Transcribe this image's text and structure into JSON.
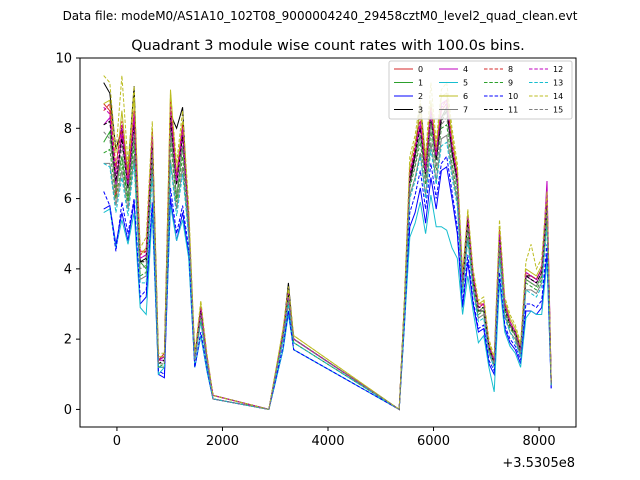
{
  "suptitle": "Data file: modeM0/AS1A10_102T08_9000004240_29458cztM0_level2_quad_clean.evt",
  "chart_data": {
    "type": "line",
    "title": "Quadrant 3 module wise count rates with 100.0s bins.",
    "xlabel": "",
    "ylabel": "",
    "x_offset_label": "+3.5305e8",
    "xlim": [
      -700,
      8700
    ],
    "ylim": [
      -0.5,
      10
    ],
    "xticks": [
      0,
      2000,
      4000,
      6000,
      8000
    ],
    "xtick_labels": [
      "0",
      "2000",
      "4000",
      "6000",
      "8000"
    ],
    "yticks": [
      0,
      2,
      4,
      6,
      8,
      10
    ],
    "ytick_labels": [
      "0",
      "2",
      "4",
      "6",
      "8",
      "10"
    ],
    "legend_position": "top-right",
    "series": [
      {
        "name": "0",
        "color": "#d62728",
        "dash": "solid",
        "seg1": [
          8.7,
          8.5,
          6.0,
          8.0,
          6.5,
          8.4,
          4.5,
          4.5,
          7.8,
          1.4,
          1.6,
          8.5,
          6.5,
          8.0,
          5.5,
          1.5,
          2.8,
          1.5,
          0.4,
          0
        ],
        "seg2": [
          2.2,
          3.3,
          2.0
        ],
        "seg3": [
          3.0,
          6.7,
          7.4,
          8.0,
          6.8,
          8.5,
          7.2,
          8.5,
          8.7,
          7.5,
          6.6,
          3.7,
          5.5,
          3.8,
          3.0,
          3.0,
          1.8,
          1.4,
          5.0,
          3.0,
          2.5,
          2.2,
          1.7,
          3.8,
          3.8,
          3.7,
          4.0,
          5.8,
          0.8
        ]
      },
      {
        "name": "1",
        "color": "#2ca02c",
        "dash": "solid",
        "seg1": [
          7.6,
          7.9,
          6.3,
          7.2,
          6.0,
          7.8,
          4.2,
          4.0,
          7.3,
          1.2,
          1.2,
          8.0,
          6.0,
          7.5,
          5.4,
          1.5,
          2.7,
          1.4,
          0.4,
          0
        ],
        "seg2": [
          2.1,
          3.2,
          2.0
        ],
        "seg3": [
          2.9,
          6.6,
          7.2,
          7.8,
          6.6,
          8.2,
          7.1,
          8.3,
          8.5,
          7.3,
          6.4,
          3.6,
          5.3,
          3.7,
          2.8,
          2.9,
          1.7,
          1.3,
          4.8,
          2.9,
          2.4,
          2.1,
          1.6,
          3.7,
          3.6,
          3.5,
          3.8,
          5.6,
          0.8
        ]
      },
      {
        "name": "2",
        "color": "#0000ff",
        "dash": "solid",
        "seg1": [
          5.7,
          5.8,
          4.7,
          5.6,
          4.8,
          5.9,
          3.0,
          3.2,
          5.8,
          1.0,
          0.9,
          6.0,
          4.8,
          5.6,
          4.4,
          1.2,
          2.1,
          1.1,
          0.3,
          0
        ],
        "seg2": [
          1.7,
          2.8,
          1.7
        ],
        "seg3": [
          2.5,
          5.2,
          5.6,
          6.3,
          5.3,
          6.6,
          5.7,
          6.8,
          6.9,
          6.0,
          5.0,
          2.9,
          4.2,
          3.0,
          2.2,
          2.3,
          1.3,
          1.0,
          3.7,
          2.3,
          1.9,
          1.7,
          1.3,
          2.8,
          2.8,
          2.7,
          2.9,
          4.4,
          0.6
        ]
      },
      {
        "name": "3",
        "color": "#000000",
        "dash": "solid",
        "seg1": [
          9.3,
          9.0,
          7.4,
          8.0,
          6.8,
          9.2,
          4.2,
          4.3,
          7.9,
          1.4,
          1.5,
          8.4,
          8.0,
          8.6,
          5.3,
          1.5,
          2.9,
          1.5,
          0.4,
          0
        ],
        "seg2": [
          2.2,
          3.6,
          2.0
        ],
        "seg3": [
          3.1,
          6.4,
          7.2,
          8.7,
          7.1,
          8.5,
          7.1,
          8.3,
          8.6,
          7.3,
          6.6,
          3.6,
          5.4,
          3.7,
          2.8,
          2.8,
          1.8,
          1.3,
          5.0,
          2.9,
          2.4,
          2.1,
          1.6,
          3.8,
          3.8,
          3.7,
          4.0,
          6.0,
          0.7
        ]
      },
      {
        "name": "4",
        "color": "#bf00bf",
        "dash": "solid",
        "seg1": [
          8.1,
          8.3,
          6.4,
          7.8,
          6.3,
          8.2,
          4.3,
          4.4,
          7.6,
          1.4,
          1.4,
          8.3,
          6.4,
          7.8,
          5.4,
          1.5,
          2.7,
          1.4,
          0.4,
          0
        ],
        "seg2": [
          2.2,
          3.2,
          2.0
        ],
        "seg3": [
          3.0,
          6.6,
          7.3,
          8.1,
          6.7,
          8.4,
          7.2,
          8.7,
          8.8,
          7.5,
          6.5,
          3.7,
          5.4,
          3.8,
          2.9,
          3.0,
          1.8,
          1.4,
          4.9,
          3.0,
          2.5,
          2.2,
          1.7,
          3.8,
          3.7,
          3.6,
          3.9,
          6.5,
          0.8
        ]
      },
      {
        "name": "5",
        "color": "#17becf",
        "dash": "solid",
        "seg1": [
          5.6,
          5.7,
          4.6,
          5.4,
          4.7,
          5.6,
          2.9,
          2.7,
          5.6,
          1.0,
          1.2,
          5.8,
          4.8,
          5.4,
          4.3,
          1.2,
          2.1,
          1.1,
          0.3,
          0
        ],
        "seg2": [
          1.7,
          2.7,
          1.7
        ],
        "seg3": [
          2.4,
          4.9,
          5.3,
          5.9,
          5.0,
          6.1,
          5.2,
          5.2,
          5.1,
          4.6,
          4.3,
          2.7,
          3.8,
          2.8,
          1.9,
          2.1,
          1.2,
          0.5,
          3.6,
          2.2,
          1.8,
          1.6,
          1.2,
          2.6,
          2.8,
          2.7,
          2.7,
          4.2,
          0.7
        ]
      },
      {
        "name": "6",
        "color": "#bcbd22",
        "dash": "solid",
        "seg1": [
          8.7,
          8.8,
          6.8,
          8.5,
          6.7,
          8.9,
          4.4,
          4.6,
          8.0,
          1.5,
          1.5,
          9.1,
          6.7,
          8.2,
          5.6,
          1.5,
          3.0,
          1.5,
          0.4,
          0
        ],
        "seg2": [
          2.3,
          3.4,
          2.1
        ],
        "seg3": [
          3.1,
          7.0,
          7.6,
          8.5,
          7.0,
          8.8,
          7.4,
          8.9,
          9.0,
          7.8,
          6.8,
          3.8,
          5.6,
          3.9,
          3.0,
          3.1,
          1.9,
          1.4,
          5.2,
          3.1,
          2.6,
          2.3,
          1.8,
          4.0,
          3.9,
          3.8,
          4.1,
          6.1,
          0.8
        ]
      },
      {
        "name": "7",
        "color": "#7f7f7f",
        "dash": "solid",
        "seg1": [
          7.0,
          7.0,
          5.8,
          6.8,
          5.7,
          7.2,
          3.7,
          3.8,
          6.9,
          1.2,
          1.2,
          7.1,
          5.7,
          6.9,
          5.0,
          1.4,
          2.5,
          1.3,
          0.3,
          0
        ],
        "seg2": [
          2.0,
          3.0,
          1.9
        ],
        "seg3": [
          2.8,
          6.1,
          6.6,
          7.3,
          6.1,
          7.6,
          6.5,
          7.7,
          7.8,
          6.8,
          5.9,
          3.3,
          4.9,
          3.4,
          2.6,
          2.7,
          1.6,
          1.2,
          4.4,
          2.7,
          2.2,
          2.0,
          1.5,
          3.4,
          3.4,
          3.3,
          3.6,
          5.4,
          0.7
        ]
      },
      {
        "name": "8",
        "color": "#d62728",
        "dash": "dashed",
        "seg1": [
          8.5,
          8.7,
          6.9,
          8.2,
          6.5,
          8.5,
          4.4,
          4.5,
          7.9,
          1.4,
          1.5,
          8.8,
          6.6,
          8.1,
          5.5,
          1.5,
          2.9,
          1.5,
          0.4,
          0
        ],
        "seg2": [
          2.2,
          3.3,
          2.0
        ],
        "seg3": [
          3.1,
          6.8,
          7.5,
          8.3,
          6.9,
          8.6,
          7.3,
          8.6,
          8.8,
          7.6,
          6.7,
          3.7,
          5.5,
          3.8,
          2.9,
          3.0,
          1.8,
          1.4,
          5.1,
          3.0,
          2.5,
          2.2,
          1.7,
          3.9,
          3.8,
          3.7,
          4.0,
          6.0,
          0.8
        ]
      },
      {
        "name": "9",
        "color": "#2ca02c",
        "dash": "dashed",
        "seg1": [
          7.3,
          7.4,
          6.0,
          7.0,
          5.9,
          7.5,
          3.8,
          3.9,
          7.1,
          1.2,
          1.3,
          7.6,
          5.9,
          7.2,
          5.1,
          1.4,
          2.6,
          1.3,
          0.3,
          0
        ],
        "seg2": [
          2.0,
          3.1,
          1.9
        ],
        "seg3": [
          2.8,
          6.3,
          6.9,
          7.6,
          6.4,
          7.9,
          6.8,
          8.0,
          8.1,
          7.0,
          6.1,
          3.4,
          5.1,
          3.5,
          2.7,
          2.8,
          1.7,
          1.3,
          4.6,
          2.8,
          2.3,
          2.1,
          1.6,
          3.6,
          3.5,
          3.4,
          3.7,
          5.5,
          0.7
        ]
      },
      {
        "name": "10",
        "color": "#0000ff",
        "dash": "dashed",
        "seg1": [
          6.2,
          5.8,
          4.5,
          5.9,
          5.0,
          6.0,
          3.2,
          3.4,
          5.9,
          1.1,
          1.0,
          6.3,
          5.0,
          5.8,
          4.6,
          1.2,
          2.2,
          1.2,
          0.3,
          0
        ],
        "seg2": [
          1.8,
          2.8,
          1.7
        ],
        "seg3": [
          2.5,
          5.6,
          6.1,
          6.8,
          5.7,
          7.0,
          6.0,
          7.0,
          7.2,
          6.2,
          5.2,
          3.0,
          4.4,
          3.1,
          2.3,
          2.4,
          1.4,
          1.1,
          3.9,
          2.4,
          2.0,
          1.8,
          1.4,
          3.0,
          3.0,
          2.9,
          3.1,
          4.7,
          0.6
        ]
      },
      {
        "name": "11",
        "color": "#000000",
        "dash": "dashed",
        "seg1": [
          8.1,
          8.2,
          6.5,
          7.7,
          6.3,
          8.1,
          4.2,
          4.2,
          7.5,
          1.3,
          1.4,
          8.3,
          6.4,
          7.8,
          5.3,
          1.5,
          2.8,
          1.4,
          0.4,
          0
        ],
        "seg2": [
          2.2,
          3.3,
          2.0
        ],
        "seg3": [
          3.0,
          6.6,
          7.3,
          8.0,
          6.7,
          8.4,
          7.1,
          8.2,
          8.5,
          7.4,
          6.5,
          3.6,
          5.4,
          3.7,
          2.9,
          2.9,
          1.8,
          1.3,
          4.9,
          2.9,
          2.4,
          2.2,
          1.7,
          3.8,
          3.7,
          3.6,
          3.9,
          5.8,
          0.7
        ]
      },
      {
        "name": "12",
        "color": "#bf00bf",
        "dash": "dashed",
        "seg1": [
          8.6,
          8.4,
          6.7,
          8.1,
          6.4,
          8.4,
          4.3,
          4.4,
          7.8,
          1.4,
          1.5,
          8.6,
          6.5,
          8.0,
          5.4,
          1.5,
          2.9,
          1.5,
          0.4,
          0
        ],
        "seg2": [
          2.2,
          3.3,
          2.0
        ],
        "seg3": [
          3.0,
          6.7,
          7.4,
          8.2,
          6.8,
          8.5,
          7.2,
          8.6,
          8.7,
          7.5,
          6.6,
          3.7,
          5.5,
          3.8,
          2.9,
          3.0,
          1.8,
          1.4,
          5.0,
          3.0,
          2.5,
          2.2,
          1.7,
          3.9,
          3.8,
          3.7,
          4.0,
          6.2,
          0.8
        ]
      },
      {
        "name": "13",
        "color": "#17becf",
        "dash": "dashed",
        "seg1": [
          7.0,
          6.9,
          5.6,
          6.6,
          5.5,
          7.0,
          3.6,
          3.6,
          6.7,
          1.2,
          1.2,
          7.0,
          5.5,
          6.7,
          4.9,
          1.4,
          2.5,
          1.3,
          0.3,
          0
        ],
        "seg2": [
          2.0,
          3.0,
          1.9
        ],
        "seg3": [
          2.7,
          6.0,
          6.5,
          7.2,
          6.0,
          7.4,
          6.4,
          7.5,
          7.6,
          6.6,
          5.8,
          3.3,
          4.8,
          3.4,
          2.5,
          2.6,
          1.6,
          1.2,
          4.3,
          2.6,
          2.2,
          1.9,
          1.5,
          3.4,
          3.3,
          3.2,
          3.5,
          5.2,
          0.7
        ]
      },
      {
        "name": "14",
        "color": "#bcbd22",
        "dash": "dashed",
        "seg1": [
          9.5,
          9.3,
          7.3,
          9.5,
          7.0,
          9.2,
          4.6,
          4.9,
          8.2,
          1.6,
          1.6,
          9.0,
          7.0,
          8.5,
          5.8,
          1.6,
          3.1,
          1.6,
          0.4,
          0
        ],
        "seg2": [
          2.3,
          3.5,
          2.1
        ],
        "seg3": [
          3.2,
          7.2,
          7.8,
          8.8,
          7.2,
          9.3,
          7.6,
          9.1,
          9.3,
          8.0,
          7.0,
          3.9,
          5.7,
          4.0,
          3.1,
          3.2,
          2.0,
          1.5,
          5.4,
          3.2,
          2.7,
          2.4,
          1.9,
          4.2,
          4.7,
          4.0,
          4.3,
          6.2,
          0.8
        ]
      },
      {
        "name": "15",
        "color": "#7f7f7f",
        "dash": "dashed",
        "seg1": [
          7.9,
          7.7,
          6.2,
          7.5,
          6.1,
          7.8,
          4.0,
          4.1,
          7.3,
          1.3,
          1.3,
          7.9,
          6.1,
          7.5,
          5.2,
          1.4,
          2.7,
          1.4,
          0.3,
          0
        ],
        "seg2": [
          2.1,
          3.2,
          2.0
        ],
        "seg3": [
          2.9,
          6.4,
          7.0,
          7.8,
          6.5,
          8.1,
          6.9,
          8.1,
          8.3,
          7.2,
          6.3,
          3.5,
          5.2,
          3.6,
          2.8,
          2.9,
          1.7,
          1.3,
          4.7,
          2.9,
          2.4,
          2.1,
          1.6,
          3.7,
          3.6,
          3.5,
          3.8,
          5.7,
          0.7
        ]
      }
    ]
  }
}
